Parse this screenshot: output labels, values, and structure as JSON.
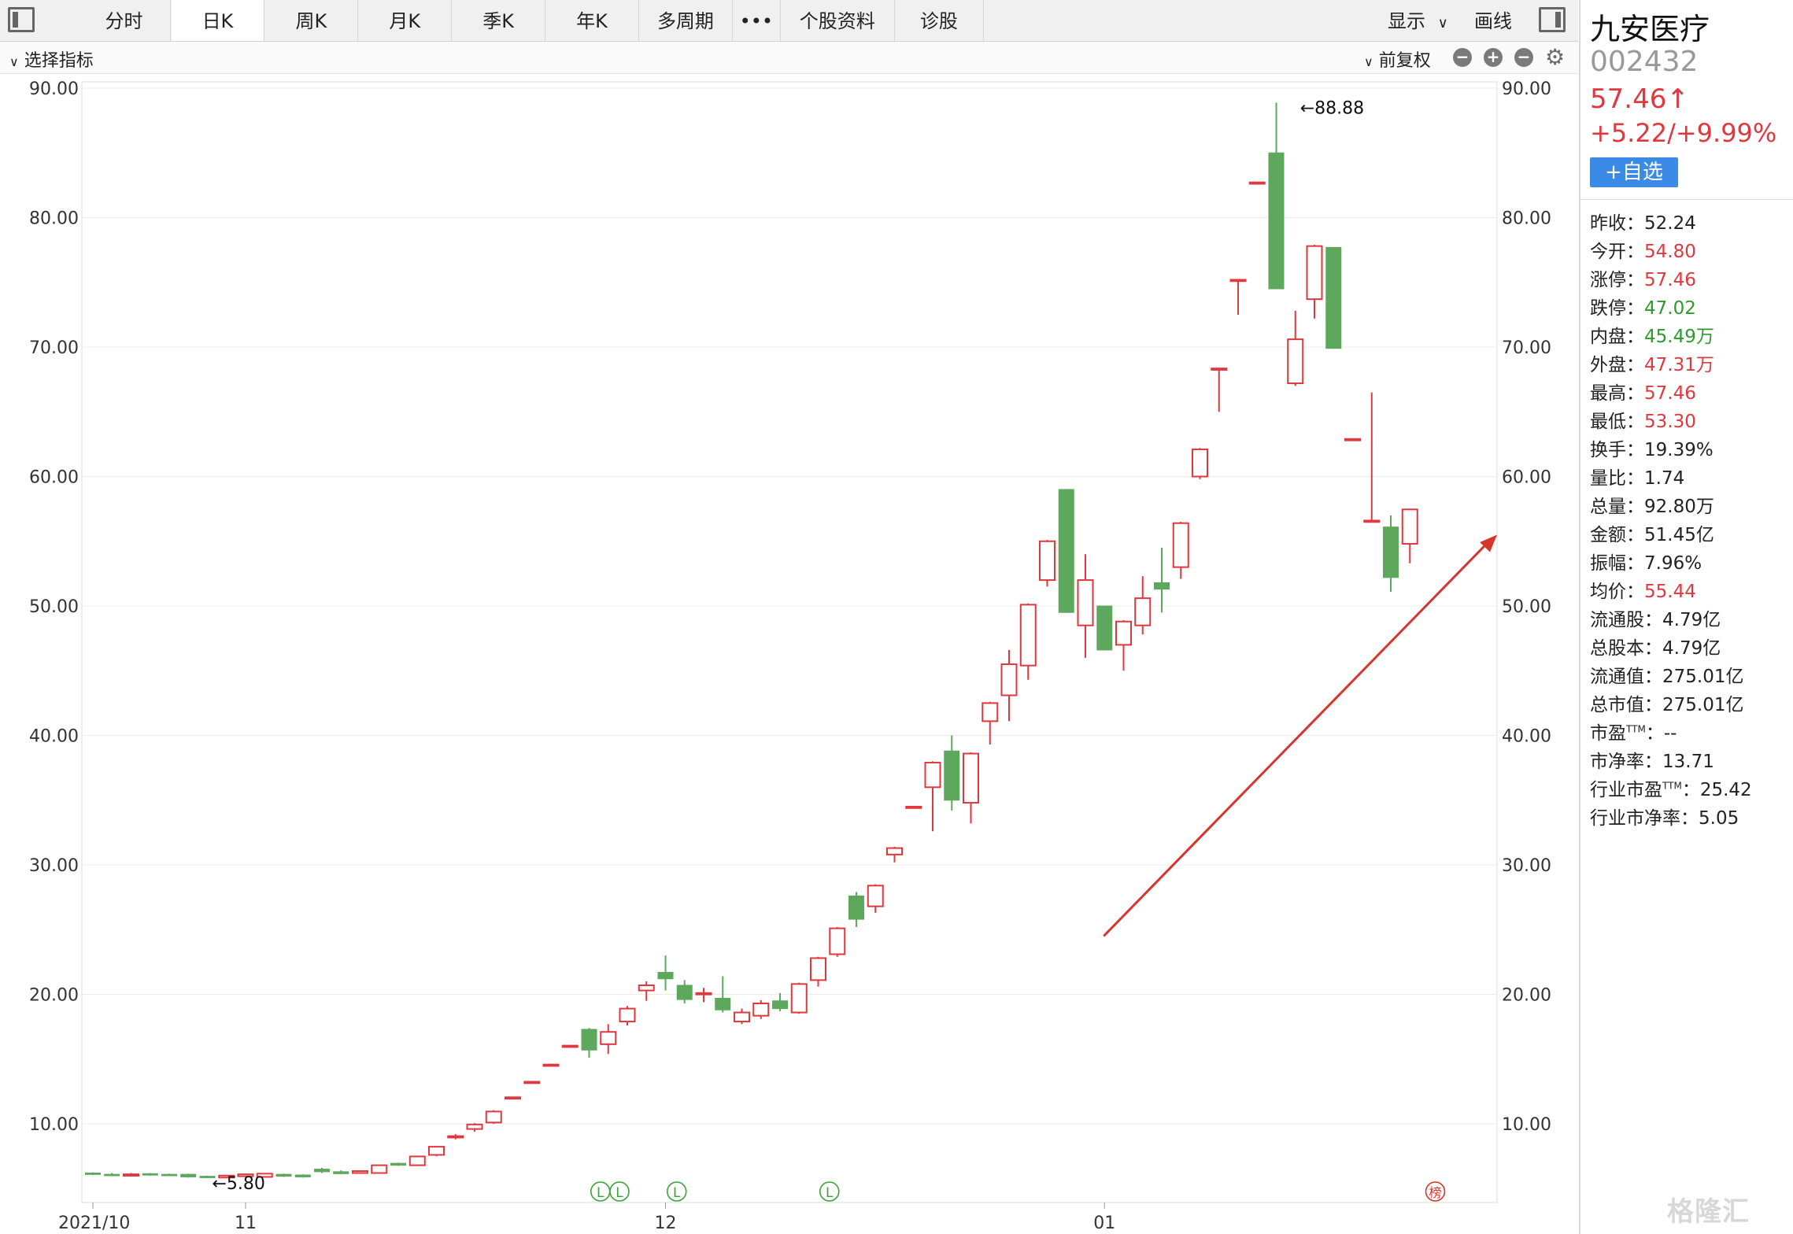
{
  "tabs": [
    {
      "label": "分时"
    },
    {
      "label": "日K"
    },
    {
      "label": "周K"
    },
    {
      "label": "月K"
    },
    {
      "label": "季K"
    },
    {
      "label": "年K"
    },
    {
      "label": "多周期"
    },
    {
      "label": "•••"
    },
    {
      "label": "个股资料"
    },
    {
      "label": "诊股"
    }
  ],
  "active_tab": "日K",
  "toolbar": {
    "display_label": "显示",
    "draw_label": "画线"
  },
  "indicator_bar": {
    "select_label": "选择指标",
    "adjust_label": "前复权"
  },
  "stock": {
    "name": "九安医疗",
    "code": "002432",
    "price": "57.46↑",
    "change": "+5.22/+9.99%",
    "add_watch": "+自选"
  },
  "stats": [
    {
      "label": "昨收：",
      "value": "52.24",
      "color": "normal"
    },
    {
      "label": "今开：",
      "value": "54.80",
      "color": "red"
    },
    {
      "label": "涨停：",
      "value": "57.46",
      "color": "red"
    },
    {
      "label": "跌停：",
      "value": "47.02",
      "color": "green"
    },
    {
      "label": "内盘：",
      "value": "45.49万",
      "color": "green"
    },
    {
      "label": "外盘：",
      "value": "47.31万",
      "color": "red"
    },
    {
      "label": "最高：",
      "value": "57.46",
      "color": "red"
    },
    {
      "label": "最低：",
      "value": "53.30",
      "color": "red"
    },
    {
      "label": "换手：",
      "value": "19.39%",
      "color": "normal"
    },
    {
      "label": "量比：",
      "value": "1.74",
      "color": "normal"
    },
    {
      "label": "总量：",
      "value": "92.80万",
      "color": "normal"
    },
    {
      "label": "金额：",
      "value": "51.45亿",
      "color": "normal"
    },
    {
      "label": "振幅：",
      "value": "7.96%",
      "color": "normal"
    },
    {
      "label": "均价：",
      "value": "55.44",
      "color": "red"
    },
    {
      "label": "流通股：",
      "value": "4.79亿",
      "color": "normal"
    },
    {
      "label": "总股本：",
      "value": "4.79亿",
      "color": "normal"
    },
    {
      "label": "流通值：",
      "value": "275.01亿",
      "color": "normal"
    },
    {
      "label": "总市值：",
      "value": "275.01亿",
      "color": "normal"
    },
    {
      "label": "市盈",
      "sup": "TTM",
      "label2": "：",
      "value": "--",
      "color": "normal"
    },
    {
      "label": "市净率：",
      "value": "13.71",
      "color": "normal"
    },
    {
      "label": "行业市盈",
      "sup": "TTM",
      "label2": "：",
      "value": "25.42",
      "color": "normal"
    },
    {
      "label": "行业市净率：",
      "value": "5.05",
      "color": "normal"
    }
  ],
  "watermark": "格隆汇",
  "colors": {
    "up": "#e0383e",
    "down": "#5ea85e",
    "grid": "#ececec",
    "accent": "#3b8ae6"
  },
  "chart_data": {
    "type": "candlestick",
    "ylim": [
      5,
      91
    ],
    "y_ticks": [
      10,
      20,
      30,
      40,
      50,
      60,
      70,
      80,
      90
    ],
    "y_tick_labels": [
      "10.00",
      "20.00",
      "30.00",
      "40.00",
      "50.00",
      "60.00",
      "70.00",
      "80.00",
      "90.00"
    ],
    "x_labels": [
      {
        "label": "2021/10",
        "index": 0
      },
      {
        "label": "11",
        "index": 8
      },
      {
        "label": "12",
        "index": 30
      },
      {
        "label": "01",
        "index": 53
      }
    ],
    "annotations": [
      {
        "text": "←88.88",
        "index": 63,
        "value": 88.88
      },
      {
        "text": "←5.80",
        "index": 6,
        "value": 5.8
      }
    ],
    "markers": [
      {
        "text": "L",
        "index": 27,
        "color": "green"
      },
      {
        "text": "L",
        "index": 28,
        "color": "green"
      },
      {
        "text": "L",
        "index": 31,
        "color": "green"
      },
      {
        "text": "L",
        "index": 39,
        "color": "green"
      },
      {
        "text": "榜",
        "index": 70,
        "color": "red"
      }
    ],
    "trend_arrow": {
      "from_index": 49,
      "from_value": 24.5,
      "to_index": 74,
      "to_value": 55.5,
      "color": "#d6362c"
    },
    "candles": [
      {
        "o": 6.2,
        "c": 6.1,
        "h": 6.25,
        "l": 6.05
      },
      {
        "o": 6.1,
        "c": 6.05,
        "h": 6.2,
        "l": 6.0
      },
      {
        "o": 6.05,
        "c": 6.1,
        "h": 6.2,
        "l": 6.0
      },
      {
        "o": 6.15,
        "c": 6.05,
        "h": 6.2,
        "l": 6.0
      },
      {
        "o": 6.1,
        "c": 6.05,
        "h": 6.15,
        "l": 6.0
      },
      {
        "o": 6.1,
        "c": 5.9,
        "h": 6.15,
        "l": 5.85
      },
      {
        "o": 5.95,
        "c": 5.85,
        "h": 6.0,
        "l": 5.8
      },
      {
        "o": 5.85,
        "c": 6.0,
        "h": 6.05,
        "l": 5.82
      },
      {
        "o": 5.95,
        "c": 6.1,
        "h": 6.15,
        "l": 5.9
      },
      {
        "o": 5.9,
        "c": 6.15,
        "h": 6.2,
        "l": 5.85
      },
      {
        "o": 6.1,
        "c": 5.95,
        "h": 6.15,
        "l": 5.9
      },
      {
        "o": 6.05,
        "c": 5.9,
        "h": 6.1,
        "l": 5.85
      },
      {
        "o": 6.5,
        "c": 6.3,
        "h": 6.6,
        "l": 6.2
      },
      {
        "o": 6.3,
        "c": 6.15,
        "h": 6.4,
        "l": 6.1
      },
      {
        "o": 6.2,
        "c": 6.35,
        "h": 6.4,
        "l": 6.15
      },
      {
        "o": 6.2,
        "c": 6.8,
        "h": 6.85,
        "l": 6.15
      },
      {
        "o": 6.95,
        "c": 6.8,
        "h": 7.0,
        "l": 6.75
      },
      {
        "o": 6.8,
        "c": 7.48,
        "h": 7.5,
        "l": 6.8
      },
      {
        "o": 7.6,
        "c": 8.23,
        "h": 8.23,
        "l": 7.5
      },
      {
        "o": 9.0,
        "c": 9.05,
        "h": 9.2,
        "l": 8.8
      },
      {
        "o": 9.6,
        "c": 9.95,
        "h": 10.05,
        "l": 9.4
      },
      {
        "o": 10.1,
        "c": 10.95,
        "h": 11.05,
        "l": 10.0
      },
      {
        "o": 12.05,
        "c": 12.05,
        "h": 12.05,
        "l": 12.05
      },
      {
        "o": 13.25,
        "c": 13.25,
        "h": 13.25,
        "l": 13.25
      },
      {
        "o": 14.58,
        "c": 14.58,
        "h": 14.58,
        "l": 14.58
      },
      {
        "o": 16.04,
        "c": 16.04,
        "h": 16.04,
        "l": 16.04
      },
      {
        "o": 17.3,
        "c": 15.7,
        "h": 17.4,
        "l": 15.1
      },
      {
        "o": 16.15,
        "c": 17.1,
        "h": 17.7,
        "l": 15.4
      },
      {
        "o": 17.9,
        "c": 18.9,
        "h": 19.1,
        "l": 17.6
      },
      {
        "o": 20.3,
        "c": 20.7,
        "h": 21.0,
        "l": 19.5
      },
      {
        "o": 21.7,
        "c": 21.2,
        "h": 23.0,
        "l": 20.3
      },
      {
        "o": 20.7,
        "c": 19.6,
        "h": 21.1,
        "l": 19.3
      },
      {
        "o": 20.1,
        "c": 20.1,
        "h": 20.5,
        "l": 19.4
      },
      {
        "o": 19.7,
        "c": 18.8,
        "h": 21.4,
        "l": 18.6
      },
      {
        "o": 17.9,
        "c": 18.6,
        "h": 18.9,
        "l": 17.7
      },
      {
        "o": 18.35,
        "c": 19.3,
        "h": 19.55,
        "l": 18.1
      },
      {
        "o": 19.5,
        "c": 18.9,
        "h": 20.1,
        "l": 18.7
      },
      {
        "o": 18.6,
        "c": 20.8,
        "h": 20.9,
        "l": 18.5
      },
      {
        "o": 21.1,
        "c": 22.8,
        "h": 22.9,
        "l": 20.6
      },
      {
        "o": 23.1,
        "c": 25.1,
        "h": 25.2,
        "l": 22.9
      },
      {
        "o": 27.6,
        "c": 25.8,
        "h": 27.9,
        "l": 25.2
      },
      {
        "o": 26.8,
        "c": 28.4,
        "h": 28.5,
        "l": 26.3
      },
      {
        "o": 30.8,
        "c": 31.3,
        "h": 31.4,
        "l": 30.2
      },
      {
        "o": 34.5,
        "c": 34.5,
        "h": 34.5,
        "l": 34.5
      },
      {
        "o": 36.0,
        "c": 37.9,
        "h": 38.0,
        "l": 32.6
      },
      {
        "o": 38.8,
        "c": 35.0,
        "h": 40.0,
        "l": 34.2
      },
      {
        "o": 34.8,
        "c": 38.6,
        "h": 38.7,
        "l": 33.2
      },
      {
        "o": 41.1,
        "c": 42.5,
        "h": 42.6,
        "l": 39.3
      },
      {
        "o": 43.1,
        "c": 45.5,
        "h": 46.6,
        "l": 41.1
      },
      {
        "o": 45.4,
        "c": 50.1,
        "h": 50.2,
        "l": 44.3
      },
      {
        "o": 52.0,
        "c": 55.0,
        "h": 55.1,
        "l": 51.5
      },
      {
        "o": 59.0,
        "c": 49.5,
        "h": 59.0,
        "l": 49.5
      },
      {
        "o": 48.5,
        "c": 52.0,
        "h": 54.0,
        "l": 46.0
      },
      {
        "o": 50.0,
        "c": 46.6,
        "h": 50.0,
        "l": 46.6
      },
      {
        "o": 47.0,
        "c": 48.8,
        "h": 48.9,
        "l": 45.0
      },
      {
        "o": 48.5,
        "c": 50.6,
        "h": 52.3,
        "l": 47.8
      },
      {
        "o": 51.8,
        "c": 51.3,
        "h": 54.5,
        "l": 49.5
      },
      {
        "o": 53.0,
        "c": 56.4,
        "h": 56.5,
        "l": 52.1
      },
      {
        "o": 60.0,
        "c": 62.1,
        "h": 62.2,
        "l": 59.8
      },
      {
        "o": 68.35,
        "c": 68.35,
        "h": 68.35,
        "l": 65.0
      },
      {
        "o": 75.2,
        "c": 75.2,
        "h": 75.2,
        "l": 72.5
      },
      {
        "o": 82.72,
        "c": 82.72,
        "h": 82.72,
        "l": 82.72
      },
      {
        "o": 85.0,
        "c": 74.5,
        "h": 88.88,
        "l": 74.5
      },
      {
        "o": 67.2,
        "c": 70.6,
        "h": 72.8,
        "l": 67.0
      },
      {
        "o": 73.7,
        "c": 77.8,
        "h": 77.9,
        "l": 72.2
      },
      {
        "o": 77.7,
        "c": 69.9,
        "h": 77.7,
        "l": 69.9
      },
      {
        "o": 62.9,
        "c": 62.9,
        "h": 62.9,
        "l": 62.9
      },
      {
        "o": 56.6,
        "c": 56.6,
        "h": 66.5,
        "l": 56.6
      },
      {
        "o": 56.1,
        "c": 52.2,
        "h": 57.0,
        "l": 51.1
      },
      {
        "o": 54.8,
        "c": 57.46,
        "h": 57.46,
        "l": 53.3
      }
    ]
  }
}
